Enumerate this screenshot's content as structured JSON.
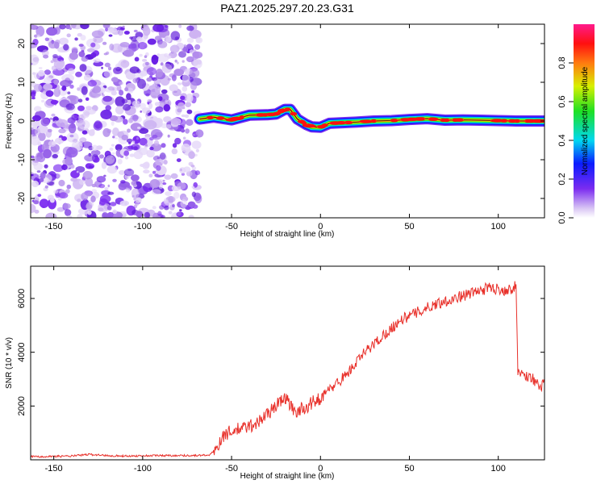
{
  "title": "PAZ1.2025.297.20.23.G31",
  "chart_data": [
    {
      "type": "heatmap",
      "xlabel": "Height of straight line (km)",
      "ylabel": "Frequency (Hz)",
      "xlim": [
        -163,
        126
      ],
      "ylim": [
        -25,
        25
      ],
      "xticks": [
        -150,
        -100,
        -50,
        0,
        50,
        100
      ],
      "yticks": [
        -20,
        -10,
        0,
        10,
        20
      ],
      "noise_region": {
        "x_start": -163,
        "x_end": -68,
        "description_color": "#7b2cf0"
      },
      "signal_ridge": {
        "x": [
          -68,
          -60,
          -50,
          -40,
          -30,
          -25,
          -20,
          -17,
          -13,
          -8,
          -5,
          0,
          5,
          10,
          20,
          30,
          40,
          50,
          60,
          70,
          80,
          90,
          100,
          110,
          120,
          126
        ],
        "y": [
          0.5,
          1.0,
          0.3,
          1.5,
          1.6,
          1.8,
          3.0,
          3.0,
          0.5,
          -0.9,
          -1.5,
          -1.6,
          -0.6,
          -0.5,
          -0.3,
          0.0,
          0.1,
          0.4,
          0.6,
          0.2,
          0.3,
          0.2,
          0.1,
          0.0,
          0.0,
          0.0
        ]
      },
      "colorbar": {
        "label": "Normalized spectral amplitude",
        "ticks": [
          "0.0",
          "0.2",
          "0.4",
          "0.6",
          "0.8"
        ],
        "tick_values": [
          0.0,
          0.2,
          0.4,
          0.6,
          0.8
        ],
        "range": [
          0.0,
          1.0
        ]
      }
    },
    {
      "type": "line",
      "xlabel": "Height of straight line (km)",
      "ylabel": "SNR (10 * v/v)",
      "xlim": [
        -163,
        126
      ],
      "ylim": [
        0,
        7200
      ],
      "xticks": [
        -150,
        -100,
        -50,
        0,
        50,
        100
      ],
      "yticks": [
        2000,
        4000,
        6000
      ],
      "series": [
        {
          "name": "SNR",
          "color": "#e8302a",
          "x": [
            -163,
            -150,
            -140,
            -130,
            -120,
            -110,
            -100,
            -90,
            -80,
            -70,
            -62,
            -58,
            -55,
            -50,
            -45,
            -40,
            -35,
            -30,
            -25,
            -20,
            -15,
            -10,
            -5,
            0,
            5,
            10,
            15,
            20,
            25,
            30,
            35,
            40,
            45,
            50,
            55,
            60,
            65,
            70,
            75,
            80,
            85,
            90,
            95,
            100,
            105,
            108,
            110,
            111,
            115,
            120,
            124,
            126
          ],
          "y": [
            120,
            130,
            140,
            200,
            160,
            140,
            150,
            160,
            160,
            160,
            180,
            500,
            900,
            1050,
            1150,
            1250,
            1400,
            1700,
            2000,
            2350,
            1800,
            1900,
            2100,
            2300,
            2600,
            2900,
            3200,
            3600,
            4000,
            4300,
            4600,
            4900,
            5200,
            5350,
            5500,
            5650,
            5800,
            5900,
            6000,
            6100,
            6200,
            6300,
            6400,
            6350,
            6300,
            6400,
            6450,
            3300,
            3150,
            3000,
            2600,
            2950
          ]
        }
      ]
    }
  ]
}
